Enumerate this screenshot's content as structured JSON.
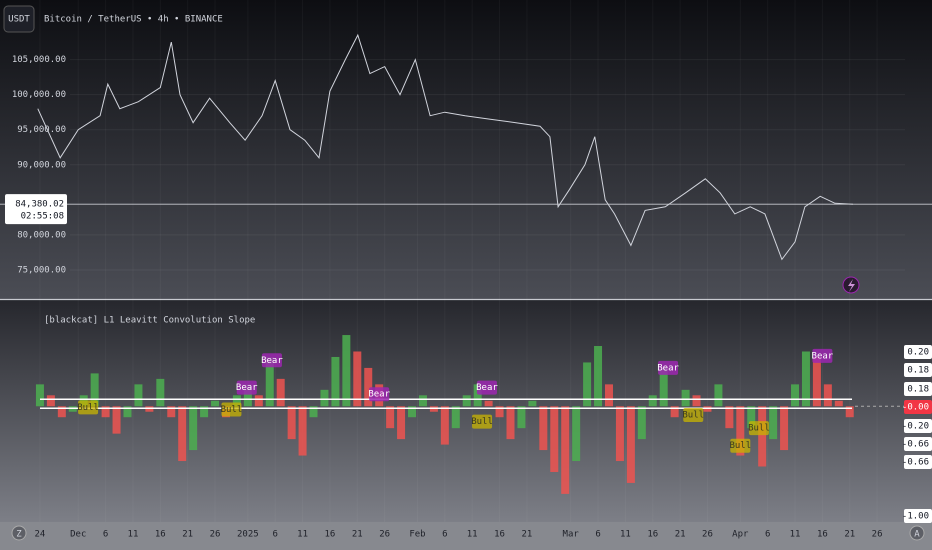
{
  "chart_data": [
    {
      "type": "line",
      "symbol_button": "USDT",
      "title": "Bitcoin / TetherUS • 4h • BINANCE",
      "x": [
        -0.4,
        3.7,
        7,
        11,
        12.4,
        14.6,
        18,
        22,
        24,
        25.6,
        28,
        31,
        34.7,
        37.5,
        40.6,
        43,
        45.7,
        48.4,
        51,
        53,
        55.8,
        58.1,
        60.3,
        63,
        65.8,
        68.6,
        71.3,
        74,
        77.7,
        82.3,
        87,
        91.4,
        93.2,
        94.7,
        96.8,
        99.6,
        101.4,
        103.3,
        105,
        108,
        110.6,
        114.3,
        118,
        121.6,
        124.3,
        127,
        129.8,
        132.5,
        135.6,
        138,
        139.8,
        142.6,
        145.3,
        148.6
      ],
      "values": [
        98000,
        91000,
        95000,
        97000,
        101500,
        98000,
        99000,
        101000,
        107500,
        100000,
        96000,
        99500,
        96000,
        93500,
        97000,
        102000,
        95000,
        93500,
        91000,
        100500,
        105000,
        108500,
        103000,
        104000,
        100000,
        105000,
        97000,
        97500,
        97000,
        96500,
        96000,
        95500,
        94000,
        84000,
        86500,
        90000,
        94000,
        85000,
        83000,
        78500,
        83500,
        84000,
        86000,
        88000,
        86000,
        83000,
        84000,
        83000,
        76500,
        79000,
        84000,
        85500,
        84500,
        84380.02
      ],
      "color": "#d1d4dc",
      "xlim": [
        -7.3,
        158.1
      ],
      "ylim": [
        71000,
        113500
      ],
      "yticks": [
        {
          "value": 75000,
          "label": "75,000.00"
        },
        {
          "value": 80000,
          "label": "80,000.00"
        },
        {
          "value": 90000,
          "label": "90,000.00"
        },
        {
          "value": 95000,
          "label": "95,000.00"
        },
        {
          "value": 100000,
          "label": "100,000.00"
        },
        {
          "value": 105000,
          "label": "105,000.00"
        }
      ],
      "last_price": {
        "value": 84380.02,
        "label": "84,380.02"
      },
      "countdown": "02:55:08"
    },
    {
      "type": "bar",
      "title": "[blackcat] L1 Leavitt Convolution Slope",
      "x": [
        0,
        2,
        4,
        6,
        8,
        10,
        12,
        14,
        16,
        18,
        20,
        22,
        24,
        26,
        28,
        30,
        32,
        34,
        36,
        38,
        40,
        42,
        44,
        46,
        48,
        50,
        52,
        54,
        56,
        58,
        60,
        62,
        64,
        66,
        68,
        70,
        72,
        74,
        76,
        78,
        80,
        82,
        84,
        86,
        88,
        90,
        92,
        94,
        96,
        98,
        100,
        102,
        104,
        106,
        108,
        110,
        112,
        114,
        116,
        118,
        120,
        122,
        124,
        126,
        128,
        130,
        132,
        134,
        136,
        138,
        140,
        142,
        144,
        146,
        148
      ],
      "values": [
        0.2,
        0.1,
        -0.1,
        -0.05,
        0.1,
        0.3,
        -0.1,
        -0.25,
        -0.1,
        0.2,
        -0.05,
        0.25,
        -0.1,
        -0.5,
        -0.4,
        -0.1,
        0.05,
        -0.1,
        0.1,
        0.2,
        0.1,
        0.45,
        0.25,
        -0.3,
        -0.45,
        -0.1,
        0.15,
        0.45,
        0.65,
        0.5,
        0.35,
        0.2,
        -0.2,
        -0.3,
        -0.1,
        0.1,
        -0.05,
        -0.35,
        -0.2,
        0.1,
        0.2,
        0.05,
        -0.1,
        -0.3,
        -0.2,
        0.05,
        -0.4,
        -0.6,
        -0.8,
        -0.5,
        0.4,
        0.55,
        0.2,
        -0.5,
        -0.7,
        -0.3,
        0.1,
        0.35,
        -0.1,
        0.15,
        0.1,
        -0.05,
        0.2,
        -0.2,
        -0.45,
        -0.2,
        -0.55,
        -0.3,
        -0.4,
        0.2,
        0.5,
        0.45,
        0.2,
        0.05,
        -0.1
      ],
      "up_color": "#4caf50",
      "down_color": "#ef5350",
      "xlim": [
        -7.3,
        158.1
      ],
      "ylim": [
        -1.02,
        0.97
      ],
      "levels": [
        0.064,
        -0.018
      ],
      "right_labels": [
        "0.20",
        "0.18",
        "0.18",
        "-0.00",
        "-0.20",
        "-0.66",
        "-0.66",
        "-1.00"
      ],
      "signals": [
        {
          "label": "Bull",
          "x": 8.8,
          "y": -0.01
        },
        {
          "label": "Bull",
          "x": 35,
          "y": -0.03
        },
        {
          "label": "Bear",
          "x": 37.8,
          "y": 0.17
        },
        {
          "label": "Bear",
          "x": 42.4,
          "y": 0.42
        },
        {
          "label": "Bear",
          "x": 62,
          "y": 0.11
        },
        {
          "label": "Bull",
          "x": 80.8,
          "y": -0.14
        },
        {
          "label": "Bear",
          "x": 81.7,
          "y": 0.17
        },
        {
          "label": "Bear",
          "x": 114.8,
          "y": 0.35
        },
        {
          "label": "Bull",
          "x": 119.4,
          "y": -0.08
        },
        {
          "label": "Bull",
          "x": 128,
          "y": -0.36
        },
        {
          "label": "Bull",
          "x": 131.4,
          "y": -0.2
        },
        {
          "label": "Bear",
          "x": 143,
          "y": 0.46
        }
      ],
      "xticks": [
        {
          "value": 0,
          "label": "24"
        },
        {
          "value": 7,
          "label": "Dec"
        },
        {
          "value": 12,
          "label": "6"
        },
        {
          "value": 17,
          "label": "11"
        },
        {
          "value": 22,
          "label": "16"
        },
        {
          "value": 27,
          "label": "21"
        },
        {
          "value": 32,
          "label": "26"
        },
        {
          "value": 38,
          "label": "2025"
        },
        {
          "value": 43,
          "label": "6"
        },
        {
          "value": 48,
          "label": "11"
        },
        {
          "value": 53,
          "label": "16"
        },
        {
          "value": 58,
          "label": "21"
        },
        {
          "value": 63,
          "label": "26"
        },
        {
          "value": 69,
          "label": "Feb"
        },
        {
          "value": 74,
          "label": "6"
        },
        {
          "value": 79,
          "label": "11"
        },
        {
          "value": 84,
          "label": "16"
        },
        {
          "value": 89,
          "label": "21"
        },
        {
          "value": 97,
          "label": "Mar"
        },
        {
          "value": 102,
          "label": "6"
        },
        {
          "value": 107,
          "label": "11"
        },
        {
          "value": 112,
          "label": "16"
        },
        {
          "value": 117,
          "label": "21"
        },
        {
          "value": 122,
          "label": "26"
        },
        {
          "value": 128,
          "label": "Apr"
        },
        {
          "value": 133,
          "label": "6"
        },
        {
          "value": 138,
          "label": "11"
        },
        {
          "value": 143,
          "label": "16"
        },
        {
          "value": 148,
          "label": "21"
        },
        {
          "value": 153,
          "label": "26"
        }
      ]
    }
  ]
}
